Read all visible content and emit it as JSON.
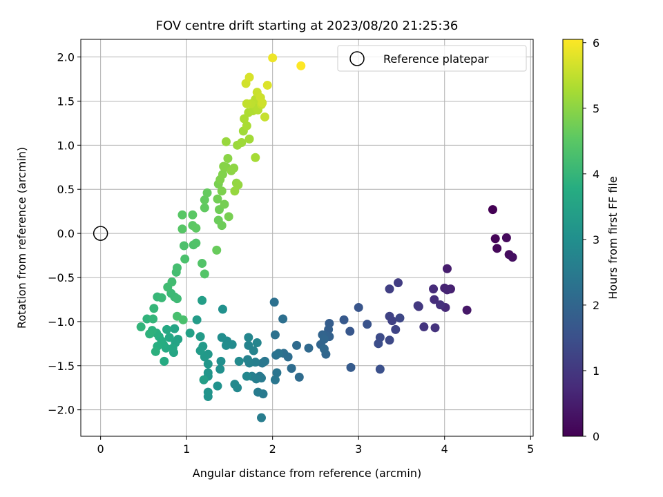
{
  "chart_data": {
    "type": "scatter",
    "title": "FOV centre drift starting at 2023/08/20 21:25:36",
    "xlabel": "Angular distance from reference (arcmin)",
    "ylabel": "Rotation from reference (arcmin)",
    "xlim": [
      -0.23,
      5.03
    ],
    "ylim": [
      -2.3,
      2.2
    ],
    "xticks": [
      "0",
      "1",
      "2",
      "3",
      "4",
      "5"
    ],
    "xtick_values": [
      0,
      1,
      2,
      3,
      4,
      5
    ],
    "yticks": [
      "−2.0",
      "−1.5",
      "−1.0",
      "−0.5",
      "0.0",
      "0.5",
      "1.0",
      "1.5",
      "2.0"
    ],
    "ytick_values": [
      -2.0,
      -1.5,
      -1.0,
      -0.5,
      0.0,
      0.5,
      1.0,
      1.5,
      2.0
    ],
    "grid": true,
    "colormap": "viridis",
    "colorbar": {
      "label": "Hours from first FF file",
      "range": [
        0,
        6.05
      ],
      "ticks": [
        "0",
        "1",
        "2",
        "3",
        "4",
        "5",
        "6"
      ],
      "tick_values": [
        0,
        1,
        2,
        3,
        4,
        5,
        6
      ]
    },
    "legend": {
      "label": "Reference platepar",
      "placement": "top-right",
      "marker": "open-circle"
    },
    "reference_point": {
      "x": 0,
      "y": 0
    },
    "points": [
      {
        "x": 4.56,
        "y": 0.27,
        "c": 0.0
      },
      {
        "x": 4.59,
        "y": -0.06,
        "c": 0.05
      },
      {
        "x": 4.61,
        "y": -0.17,
        "c": 0.1
      },
      {
        "x": 4.72,
        "y": -0.05,
        "c": 0.15
      },
      {
        "x": 4.75,
        "y": -0.24,
        "c": 0.2
      },
      {
        "x": 4.79,
        "y": -0.27,
        "c": 0.25
      },
      {
        "x": 4.26,
        "y": -0.87,
        "c": 0.4
      },
      {
        "x": 4.03,
        "y": -0.4,
        "c": 0.5
      },
      {
        "x": 4.07,
        "y": -0.63,
        "c": 0.55
      },
      {
        "x": 4.0,
        "y": -0.62,
        "c": 0.6
      },
      {
        "x": 4.03,
        "y": -0.64,
        "c": 0.62
      },
      {
        "x": 4.01,
        "y": -0.84,
        "c": 0.7
      },
      {
        "x": 3.87,
        "y": -0.63,
        "c": 0.75
      },
      {
        "x": 3.88,
        "y": -0.75,
        "c": 0.8
      },
      {
        "x": 3.95,
        "y": -0.81,
        "c": 0.85
      },
      {
        "x": 3.89,
        "y": -1.07,
        "c": 0.9
      },
      {
        "x": 3.76,
        "y": -1.06,
        "c": 0.95
      },
      {
        "x": 3.7,
        "y": -0.83,
        "c": 1.0
      },
      {
        "x": 3.69,
        "y": -0.82,
        "c": 1.02
      },
      {
        "x": 3.46,
        "y": -0.56,
        "c": 1.1
      },
      {
        "x": 3.36,
        "y": -0.63,
        "c": 1.15
      },
      {
        "x": 3.39,
        "y": -0.99,
        "c": 1.18
      },
      {
        "x": 3.36,
        "y": -0.94,
        "c": 1.2
      },
      {
        "x": 3.43,
        "y": -1.09,
        "c": 1.25
      },
      {
        "x": 3.48,
        "y": -0.96,
        "c": 1.3
      },
      {
        "x": 3.36,
        "y": -1.21,
        "c": 1.35
      },
      {
        "x": 3.25,
        "y": -1.18,
        "c": 1.4
      },
      {
        "x": 3.23,
        "y": -1.25,
        "c": 1.45
      },
      {
        "x": 3.25,
        "y": -1.54,
        "c": 1.5
      },
      {
        "x": 3.1,
        "y": -1.03,
        "c": 1.55
      },
      {
        "x": 3.0,
        "y": -0.84,
        "c": 1.6
      },
      {
        "x": 2.9,
        "y": -1.11,
        "c": 1.65
      },
      {
        "x": 2.83,
        "y": -0.98,
        "c": 1.7
      },
      {
        "x": 2.91,
        "y": -1.52,
        "c": 1.75
      },
      {
        "x": 2.66,
        "y": -1.02,
        "c": 1.8
      },
      {
        "x": 2.65,
        "y": -1.09,
        "c": 1.85
      },
      {
        "x": 2.66,
        "y": -1.17,
        "c": 1.88
      },
      {
        "x": 2.62,
        "y": -1.16,
        "c": 1.92
      },
      {
        "x": 2.58,
        "y": -1.15,
        "c": 1.95
      },
      {
        "x": 2.56,
        "y": -1.26,
        "c": 1.98
      },
      {
        "x": 2.6,
        "y": -1.2,
        "c": 2.0
      },
      {
        "x": 2.62,
        "y": -1.37,
        "c": 2.02
      },
      {
        "x": 2.6,
        "y": -1.31,
        "c": 2.05
      },
      {
        "x": 2.42,
        "y": -1.3,
        "c": 2.08
      },
      {
        "x": 2.28,
        "y": -1.27,
        "c": 2.1
      },
      {
        "x": 2.31,
        "y": -1.63,
        "c": 2.12
      },
      {
        "x": 2.22,
        "y": -1.53,
        "c": 2.15
      },
      {
        "x": 2.18,
        "y": -1.4,
        "c": 2.18
      },
      {
        "x": 2.13,
        "y": -1.36,
        "c": 2.2
      },
      {
        "x": 2.12,
        "y": -0.97,
        "c": 2.22
      },
      {
        "x": 2.02,
        "y": -0.78,
        "c": 2.25
      },
      {
        "x": 2.03,
        "y": -1.15,
        "c": 2.28
      },
      {
        "x": 2.04,
        "y": -1.38,
        "c": 2.3
      },
      {
        "x": 2.07,
        "y": -1.36,
        "c": 2.32
      },
      {
        "x": 2.05,
        "y": -1.58,
        "c": 2.35
      },
      {
        "x": 2.03,
        "y": -1.66,
        "c": 2.38
      },
      {
        "x": 1.91,
        "y": -1.45,
        "c": 2.4
      },
      {
        "x": 1.88,
        "y": -1.47,
        "c": 2.42
      },
      {
        "x": 1.85,
        "y": -1.62,
        "c": 2.45
      },
      {
        "x": 1.87,
        "y": -1.64,
        "c": 2.48
      },
      {
        "x": 1.89,
        "y": -1.82,
        "c": 2.5
      },
      {
        "x": 1.83,
        "y": -1.8,
        "c": 2.52
      },
      {
        "x": 1.87,
        "y": -2.09,
        "c": 2.55
      },
      {
        "x": 1.81,
        "y": -1.65,
        "c": 2.58
      },
      {
        "x": 1.8,
        "y": -1.46,
        "c": 2.6
      },
      {
        "x": 1.76,
        "y": -1.62,
        "c": 2.62
      },
      {
        "x": 1.73,
        "y": -1.47,
        "c": 2.65
      },
      {
        "x": 1.71,
        "y": -1.43,
        "c": 2.68
      },
      {
        "x": 1.78,
        "y": -1.33,
        "c": 2.7
      },
      {
        "x": 1.72,
        "y": -1.27,
        "c": 2.72
      },
      {
        "x": 1.82,
        "y": -1.24,
        "c": 2.75
      },
      {
        "x": 1.72,
        "y": -1.18,
        "c": 2.78
      },
      {
        "x": 1.7,
        "y": -1.62,
        "c": 2.8
      },
      {
        "x": 1.59,
        "y": -1.75,
        "c": 2.82
      },
      {
        "x": 1.56,
        "y": -1.71,
        "c": 2.85
      },
      {
        "x": 1.61,
        "y": -1.45,
        "c": 2.88
      },
      {
        "x": 1.53,
        "y": -1.26,
        "c": 2.9
      },
      {
        "x": 1.47,
        "y": -1.22,
        "c": 2.92
      },
      {
        "x": 1.46,
        "y": -1.27,
        "c": 2.95
      },
      {
        "x": 1.41,
        "y": -1.18,
        "c": 2.98
      },
      {
        "x": 1.4,
        "y": -1.45,
        "c": 3.0
      },
      {
        "x": 1.39,
        "y": -1.54,
        "c": 3.02
      },
      {
        "x": 1.42,
        "y": -0.86,
        "c": 3.05
      },
      {
        "x": 1.36,
        "y": -1.73,
        "c": 3.08
      },
      {
        "x": 1.25,
        "y": -1.85,
        "c": 3.1
      },
      {
        "x": 1.25,
        "y": -1.8,
        "c": 3.12
      },
      {
        "x": 1.25,
        "y": -1.62,
        "c": 3.15
      },
      {
        "x": 1.25,
        "y": -1.58,
        "c": 3.18
      },
      {
        "x": 1.25,
        "y": -1.48,
        "c": 3.2
      },
      {
        "x": 1.25,
        "y": -1.37,
        "c": 3.22
      },
      {
        "x": 1.21,
        "y": -1.4,
        "c": 3.25
      },
      {
        "x": 1.19,
        "y": -1.28,
        "c": 3.28
      },
      {
        "x": 1.16,
        "y": -1.33,
        "c": 3.3
      },
      {
        "x": 1.16,
        "y": -1.17,
        "c": 3.32
      },
      {
        "x": 1.12,
        "y": -0.98,
        "c": 3.35
      },
      {
        "x": 1.18,
        "y": -0.76,
        "c": 3.38
      },
      {
        "x": 1.2,
        "y": -1.66,
        "c": 3.4
      },
      {
        "x": 1.04,
        "y": -1.13,
        "c": 3.45
      },
      {
        "x": 0.9,
        "y": -1.2,
        "c": 3.5
      },
      {
        "x": 0.87,
        "y": -1.24,
        "c": 3.52
      },
      {
        "x": 0.86,
        "y": -1.08,
        "c": 3.55
      },
      {
        "x": 0.85,
        "y": -1.35,
        "c": 3.58
      },
      {
        "x": 0.84,
        "y": -1.3,
        "c": 3.6
      },
      {
        "x": 0.8,
        "y": -1.18,
        "c": 3.62
      },
      {
        "x": 0.77,
        "y": -1.09,
        "c": 3.65
      },
      {
        "x": 0.76,
        "y": -1.3,
        "c": 3.68
      },
      {
        "x": 0.74,
        "y": -1.45,
        "c": 3.7
      },
      {
        "x": 0.73,
        "y": -1.26,
        "c": 3.72
      },
      {
        "x": 0.71,
        "y": -1.22,
        "c": 3.75
      },
      {
        "x": 0.68,
        "y": -1.17,
        "c": 3.78
      },
      {
        "x": 0.66,
        "y": -1.28,
        "c": 3.8
      },
      {
        "x": 0.65,
        "y": -1.13,
        "c": 3.82
      },
      {
        "x": 0.64,
        "y": -1.34,
        "c": 3.85
      },
      {
        "x": 0.6,
        "y": -1.1,
        "c": 3.88
      },
      {
        "x": 0.57,
        "y": -1.14,
        "c": 3.9
      },
      {
        "x": 0.54,
        "y": -0.97,
        "c": 3.92
      },
      {
        "x": 0.47,
        "y": -1.06,
        "c": 3.95
      },
      {
        "x": 0.61,
        "y": -0.97,
        "c": 3.98
      },
      {
        "x": 0.62,
        "y": -0.85,
        "c": 4.0
      },
      {
        "x": 0.66,
        "y": -0.72,
        "c": 4.02
      },
      {
        "x": 0.71,
        "y": -0.73,
        "c": 4.05
      },
      {
        "x": 0.82,
        "y": -0.68,
        "c": 4.08
      },
      {
        "x": 0.86,
        "y": -0.72,
        "c": 4.1
      },
      {
        "x": 0.89,
        "y": -0.74,
        "c": 4.12
      },
      {
        "x": 0.78,
        "y": -0.61,
        "c": 4.15
      },
      {
        "x": 0.83,
        "y": -0.55,
        "c": 4.18
      },
      {
        "x": 0.88,
        "y": -0.44,
        "c": 4.2
      },
      {
        "x": 0.89,
        "y": -0.39,
        "c": 4.22
      },
      {
        "x": 0.89,
        "y": -0.94,
        "c": 4.25
      },
      {
        "x": 0.96,
        "y": -0.98,
        "c": 4.28
      },
      {
        "x": 0.98,
        "y": -0.29,
        "c": 4.3
      },
      {
        "x": 0.97,
        "y": -0.14,
        "c": 4.32
      },
      {
        "x": 1.08,
        "y": -0.13,
        "c": 4.35
      },
      {
        "x": 1.11,
        "y": -0.11,
        "c": 4.38
      },
      {
        "x": 1.18,
        "y": -0.34,
        "c": 4.4
      },
      {
        "x": 1.21,
        "y": -0.46,
        "c": 4.42
      },
      {
        "x": 0.95,
        "y": 0.05,
        "c": 4.45
      },
      {
        "x": 0.95,
        "y": 0.21,
        "c": 4.48
      },
      {
        "x": 1.07,
        "y": 0.21,
        "c": 4.5
      },
      {
        "x": 1.07,
        "y": 0.09,
        "c": 4.52
      },
      {
        "x": 1.11,
        "y": 0.06,
        "c": 4.55
      },
      {
        "x": 1.21,
        "y": 0.29,
        "c": 4.58
      },
      {
        "x": 1.21,
        "y": 0.38,
        "c": 4.6
      },
      {
        "x": 1.24,
        "y": 0.46,
        "c": 4.62
      },
      {
        "x": 1.35,
        "y": -0.19,
        "c": 4.65
      },
      {
        "x": 1.37,
        "y": 0.15,
        "c": 4.68
      },
      {
        "x": 1.41,
        "y": 0.09,
        "c": 4.7
      },
      {
        "x": 1.38,
        "y": 0.27,
        "c": 4.72
      },
      {
        "x": 1.36,
        "y": 0.39,
        "c": 4.75
      },
      {
        "x": 1.44,
        "y": 0.33,
        "c": 4.78
      },
      {
        "x": 1.49,
        "y": 0.19,
        "c": 4.8
      },
      {
        "x": 1.37,
        "y": 0.56,
        "c": 4.82
      },
      {
        "x": 1.41,
        "y": 0.48,
        "c": 4.85
      },
      {
        "x": 1.39,
        "y": 0.61,
        "c": 4.88
      },
      {
        "x": 1.42,
        "y": 0.67,
        "c": 4.9
      },
      {
        "x": 1.46,
        "y": 0.75,
        "c": 4.92
      },
      {
        "x": 1.43,
        "y": 0.76,
        "c": 4.95
      },
      {
        "x": 1.48,
        "y": 0.85,
        "c": 4.98
      },
      {
        "x": 1.52,
        "y": 0.71,
        "c": 5.0
      },
      {
        "x": 1.55,
        "y": 0.74,
        "c": 5.02
      },
      {
        "x": 1.58,
        "y": 0.57,
        "c": 5.05
      },
      {
        "x": 1.6,
        "y": 0.55,
        "c": 5.08
      },
      {
        "x": 1.56,
        "y": 0.48,
        "c": 5.1
      },
      {
        "x": 1.46,
        "y": 1.04,
        "c": 5.12
      },
      {
        "x": 1.59,
        "y": 1.0,
        "c": 5.15
      },
      {
        "x": 1.64,
        "y": 1.03,
        "c": 5.18
      },
      {
        "x": 1.66,
        "y": 1.16,
        "c": 5.2
      },
      {
        "x": 1.73,
        "y": 1.07,
        "c": 5.22
      },
      {
        "x": 1.8,
        "y": 0.86,
        "c": 5.25
      },
      {
        "x": 1.7,
        "y": 1.22,
        "c": 5.28
      },
      {
        "x": 1.67,
        "y": 1.3,
        "c": 5.3
      },
      {
        "x": 1.72,
        "y": 1.37,
        "c": 5.32
      },
      {
        "x": 1.77,
        "y": 1.39,
        "c": 5.35
      },
      {
        "x": 1.8,
        "y": 1.43,
        "c": 5.38
      },
      {
        "x": 1.83,
        "y": 1.4,
        "c": 5.4
      },
      {
        "x": 1.85,
        "y": 1.5,
        "c": 5.42
      },
      {
        "x": 1.8,
        "y": 1.52,
        "c": 5.45
      },
      {
        "x": 1.75,
        "y": 1.47,
        "c": 5.48
      },
      {
        "x": 1.7,
        "y": 1.47,
        "c": 5.5
      },
      {
        "x": 1.87,
        "y": 1.46,
        "c": 5.52
      },
      {
        "x": 1.91,
        "y": 1.32,
        "c": 5.55
      },
      {
        "x": 1.82,
        "y": 1.6,
        "c": 5.58
      },
      {
        "x": 1.86,
        "y": 1.54,
        "c": 5.6
      },
      {
        "x": 1.88,
        "y": 1.48,
        "c": 5.62
      },
      {
        "x": 1.69,
        "y": 1.7,
        "c": 5.65
      },
      {
        "x": 1.73,
        "y": 1.77,
        "c": 5.7
      },
      {
        "x": 1.94,
        "y": 1.68,
        "c": 5.75
      },
      {
        "x": 2.0,
        "y": 1.99,
        "c": 5.9
      },
      {
        "x": 2.33,
        "y": 1.9,
        "c": 6.05
      }
    ]
  }
}
